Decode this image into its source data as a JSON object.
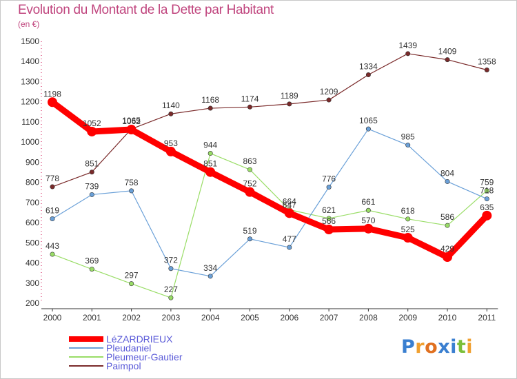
{
  "header": {
    "title": "Evolution du Montant de la Dette par Habitant",
    "subtitle": "(en €)"
  },
  "logo": {
    "text": "Proxiti",
    "letters": [
      "P",
      "r",
      "o",
      "x",
      "i",
      "t",
      "i"
    ],
    "colors": [
      "#3a7fd0",
      "#f0a030",
      "#e07020",
      "#3a7fd0",
      "#3a7fd0",
      "#7bbf3a",
      "#f0a030"
    ]
  },
  "chart_data": {
    "type": "line",
    "title": "Evolution du Montant de la Dette par Habitant",
    "subtitle": "(en €)",
    "xlabel": "",
    "ylabel": "",
    "ylim": [
      200,
      1500
    ],
    "yticks": [
      200,
      300,
      400,
      500,
      600,
      700,
      800,
      900,
      1000,
      1100,
      1200,
      1300,
      1400,
      1500
    ],
    "grid": false,
    "legend_position": "bottom-left",
    "categories": [
      "2000",
      "2001",
      "2002",
      "2003",
      "2004",
      "2005",
      "2006",
      "2007",
      "2008",
      "2009",
      "2010",
      "2011"
    ],
    "series": [
      {
        "name": "LéZARDRIEUX",
        "color": "#ff0000",
        "values": [
          1198,
          1052,
          1062,
          953,
          851,
          752,
          647,
          566,
          570,
          525,
          429,
          635
        ]
      },
      {
        "name": "Pleudaniel",
        "color": "#6aa0d8",
        "values": [
          619,
          739,
          758,
          372,
          334,
          519,
          477,
          776,
          1065,
          985,
          804,
          718
        ]
      },
      {
        "name": "Pleumeur-Gautier",
        "color": "#99dd66",
        "values": [
          443,
          369,
          297,
          227,
          944,
          863,
          664,
          621,
          661,
          618,
          586,
          759
        ]
      },
      {
        "name": "Paimpol",
        "color": "#7a2a2a",
        "values": [
          778,
          851,
          1065,
          1140,
          1168,
          1174,
          1189,
          1209,
          1334,
          1439,
          1409,
          1358
        ]
      }
    ]
  }
}
